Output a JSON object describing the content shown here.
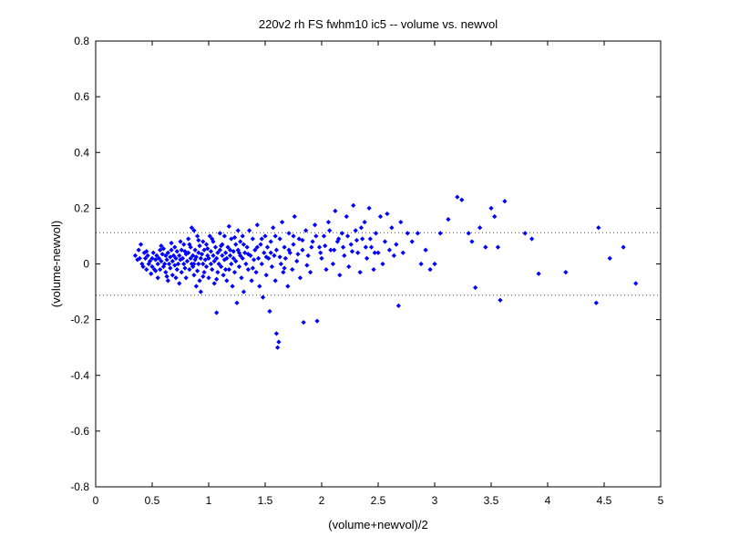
{
  "chart_data": {
    "type": "scatter",
    "title": "220v2 rh FS fwhm10 ic5 -- volume vs. newvol",
    "xlabel": "(volume+newvol)/2",
    "ylabel": "(volume-newvol)",
    "xlim": [
      0,
      5
    ],
    "ylim": [
      -0.8,
      0.8
    ],
    "xticks": [
      "0",
      "0.5",
      "1",
      "1.5",
      "2",
      "2.5",
      "3",
      "3.5",
      "4",
      "4.5",
      "5"
    ],
    "yticks": [
      "-0.8",
      "-0.6",
      "-0.4",
      "-0.2",
      "0",
      "0.2",
      "0.4",
      "0.6",
      "0.8"
    ],
    "grid": false,
    "marker_color": "#0000ff",
    "reference_lines": {
      "values": [
        0.112,
        -0.112
      ],
      "style": "dotted",
      "color": "#ff0000"
    },
    "series": [
      {
        "points": [
          [
            0.35,
            0.03
          ],
          [
            0.37,
            0.015
          ],
          [
            0.38,
            0.05
          ],
          [
            0.39,
            0.02
          ],
          [
            0.4,
            0.07
          ],
          [
            0.41,
            0.0
          ],
          [
            0.42,
            -0.01
          ],
          [
            0.43,
            0.04
          ],
          [
            0.44,
            0.02
          ],
          [
            0.45,
            -0.02
          ],
          [
            0.46,
            0.03
          ],
          [
            0.47,
            0.0
          ],
          [
            0.48,
            0.01
          ],
          [
            0.49,
            -0.035
          ],
          [
            0.5,
            0.02
          ],
          [
            0.5,
            -0.01
          ],
          [
            0.51,
            0.04
          ],
          [
            0.52,
            -0.02
          ],
          [
            0.53,
            0.015
          ],
          [
            0.54,
            0.03
          ],
          [
            0.55,
            0.0
          ],
          [
            0.55,
            -0.05
          ],
          [
            0.56,
            0.02
          ],
          [
            0.57,
            0.05
          ],
          [
            0.57,
            -0.02
          ],
          [
            0.58,
            0.01
          ],
          [
            0.59,
            0.035
          ],
          [
            0.6,
            -0.01
          ],
          [
            0.6,
            0.055
          ],
          [
            0.61,
            0.0
          ],
          [
            0.62,
            0.03
          ],
          [
            0.62,
            -0.03
          ],
          [
            0.63,
            0.015
          ],
          [
            0.64,
            0.04
          ],
          [
            0.64,
            -0.06
          ],
          [
            0.65,
            0.0
          ],
          [
            0.66,
            0.025
          ],
          [
            0.66,
            -0.015
          ],
          [
            0.67,
            0.05
          ],
          [
            0.68,
            0.01
          ],
          [
            0.68,
            -0.04
          ],
          [
            0.69,
            0.03
          ],
          [
            0.7,
            -0.005
          ],
          [
            0.7,
            0.06
          ],
          [
            0.71,
            0.02
          ],
          [
            0.72,
            -0.02
          ],
          [
            0.72,
            0.045
          ],
          [
            0.73,
            0.0
          ],
          [
            0.74,
            0.03
          ],
          [
            0.74,
            -0.07
          ],
          [
            0.75,
            0.015
          ],
          [
            0.76,
            0.05
          ],
          [
            0.76,
            -0.03
          ],
          [
            0.77,
            0.02
          ],
          [
            0.78,
            0.0
          ],
          [
            0.78,
            0.07
          ],
          [
            0.79,
            -0.015
          ],
          [
            0.8,
            0.035
          ],
          [
            0.8,
            -0.05
          ],
          [
            0.81,
            0.01
          ],
          [
            0.82,
            0.09
          ],
          [
            0.82,
            0.04
          ],
          [
            0.83,
            -0.02
          ],
          [
            0.84,
            0.02
          ],
          [
            0.84,
            0.06
          ],
          [
            0.85,
            0.0
          ],
          [
            0.85,
            0.13
          ],
          [
            0.86,
            -0.01
          ],
          [
            0.86,
            0.03
          ],
          [
            0.87,
            0.12
          ],
          [
            0.87,
            -0.04
          ],
          [
            0.88,
            0.05
          ],
          [
            0.88,
            0.015
          ],
          [
            0.89,
            -0.08
          ],
          [
            0.89,
            0.025
          ],
          [
            0.9,
            0.1
          ],
          [
            0.9,
            -0.025
          ],
          [
            0.91,
            0.04
          ],
          [
            0.91,
            0.0
          ],
          [
            0.92,
            0.065
          ],
          [
            0.92,
            -0.06
          ],
          [
            0.93,
            0.02
          ],
          [
            0.93,
            -0.1
          ],
          [
            0.94,
            0.035
          ],
          [
            0.95,
            0.0
          ],
          [
            0.95,
            0.08
          ],
          [
            0.96,
            -0.03
          ],
          [
            0.96,
            0.05
          ],
          [
            0.97,
            0.015
          ],
          [
            0.98,
            -0.01
          ],
          [
            0.98,
            0.07
          ],
          [
            0.99,
            0.03
          ],
          [
            1.0,
            -0.05
          ],
          [
            1.0,
            0.02
          ],
          [
            1.01,
            0.1
          ],
          [
            1.02,
            0.0
          ],
          [
            1.02,
            0.045
          ],
          [
            1.03,
            -0.02
          ],
          [
            1.04,
            0.03
          ],
          [
            1.04,
            0.08
          ],
          [
            1.05,
            -0.07
          ],
          [
            1.05,
            0.01
          ],
          [
            1.06,
            0.06
          ],
          [
            1.07,
            -0.175
          ],
          [
            1.07,
            0.02
          ],
          [
            1.08,
            0.04
          ],
          [
            1.08,
            -0.03
          ],
          [
            1.09,
            0.0
          ],
          [
            1.1,
            0.05
          ],
          [
            1.1,
            0.11
          ],
          [
            1.11,
            -0.01
          ],
          [
            1.12,
            0.03
          ],
          [
            1.12,
            0.07
          ],
          [
            1.13,
            -0.04
          ],
          [
            1.14,
            0.015
          ],
          [
            1.14,
            0.1
          ],
          [
            1.15,
            0.04
          ],
          [
            1.16,
            -0.06
          ],
          [
            1.16,
            0.02
          ],
          [
            1.17,
            0.06
          ],
          [
            1.18,
            -0.02
          ],
          [
            1.18,
            0.135
          ],
          [
            1.19,
            0.03
          ],
          [
            1.2,
            0.0
          ],
          [
            1.2,
            0.09
          ],
          [
            1.21,
            -0.08
          ],
          [
            1.22,
            0.045
          ],
          [
            1.22,
            0.02
          ],
          [
            1.23,
            -0.03
          ],
          [
            1.24,
            0.07
          ],
          [
            1.24,
            0.01
          ],
          [
            1.25,
            -0.14
          ],
          [
            1.26,
            0.05
          ],
          [
            1.26,
            0.12
          ],
          [
            1.27,
            -0.01
          ],
          [
            1.28,
            0.03
          ],
          [
            1.28,
            0.08
          ],
          [
            1.29,
            -0.05
          ],
          [
            1.3,
            0.02
          ],
          [
            1.3,
            0.1
          ],
          [
            1.31,
            -0.1
          ],
          [
            1.32,
            0.04
          ],
          [
            1.33,
            0.0
          ],
          [
            1.34,
            0.06
          ],
          [
            1.35,
            -0.02
          ],
          [
            1.36,
            0.12
          ],
          [
            1.37,
            0.03
          ],
          [
            1.38,
            -0.06
          ],
          [
            1.39,
            0.09
          ],
          [
            1.4,
            0.015
          ],
          [
            1.41,
            0.05
          ],
          [
            1.42,
            -0.03
          ],
          [
            1.43,
            0.14
          ],
          [
            1.44,
            0.02
          ],
          [
            1.45,
            -0.08
          ],
          [
            1.46,
            0.07
          ],
          [
            1.47,
            0.0
          ],
          [
            1.48,
            -0.12
          ],
          [
            1.49,
            0.04
          ],
          [
            1.5,
            0.1
          ],
          [
            1.51,
            -0.04
          ],
          [
            1.52,
            0.06
          ],
          [
            1.53,
            0.02
          ],
          [
            1.54,
            -0.17
          ],
          [
            1.55,
            0.08
          ],
          [
            1.56,
            -0.01
          ],
          [
            1.57,
            0.13
          ],
          [
            1.58,
            0.03
          ],
          [
            1.59,
            -0.06
          ],
          [
            1.6,
            0.05
          ],
          [
            1.6,
            -0.25
          ],
          [
            1.61,
            -0.3
          ],
          [
            1.62,
            -0.28
          ],
          [
            1.63,
            0.09
          ],
          [
            1.64,
            0.0
          ],
          [
            1.65,
            0.15
          ],
          [
            1.66,
            -0.03
          ],
          [
            1.67,
            0.06
          ],
          [
            1.68,
            0.02
          ],
          [
            1.7,
            -0.08
          ],
          [
            1.71,
            0.11
          ],
          [
            1.72,
            0.04
          ],
          [
            1.74,
            -0.02
          ],
          [
            1.75,
            0.07
          ],
          [
            1.76,
            0.17
          ],
          [
            1.78,
            0.01
          ],
          [
            1.8,
            0.09
          ],
          [
            1.81,
            -0.05
          ],
          [
            1.83,
            0.05
          ],
          [
            1.84,
            -0.21
          ],
          [
            1.86,
            0.12
          ],
          [
            1.88,
            0.03
          ],
          [
            1.9,
            -0.03
          ],
          [
            1.92,
            0.08
          ],
          [
            1.94,
            0.14
          ],
          [
            1.96,
            -0.205
          ],
          [
            1.98,
            0.06
          ],
          [
            2.0,
            0.02
          ],
          [
            2.02,
            0.1
          ],
          [
            2.04,
            -0.02
          ],
          [
            2.06,
            0.15
          ],
          [
            2.08,
            0.05
          ],
          [
            2.1,
            0.0
          ],
          [
            2.12,
            0.19
          ],
          [
            2.14,
            0.08
          ],
          [
            2.16,
            -0.04
          ],
          [
            2.18,
            0.11
          ],
          [
            2.2,
            0.03
          ],
          [
            2.22,
            0.17
          ],
          [
            2.24,
            -0.01
          ],
          [
            2.26,
            0.07
          ],
          [
            2.28,
            0.21
          ],
          [
            2.3,
            0.12
          ],
          [
            2.32,
            0.04
          ],
          [
            2.34,
            -0.03
          ],
          [
            2.36,
            0.09
          ],
          [
            2.38,
            0.15
          ],
          [
            2.4,
            0.02
          ],
          [
            2.42,
            0.2
          ],
          [
            2.44,
            0.06
          ],
          [
            2.46,
            -0.02
          ],
          [
            2.48,
            0.11
          ],
          [
            2.5,
            0.04
          ],
          [
            2.52,
            0.17
          ],
          [
            2.54,
            0.0
          ],
          [
            2.56,
            0.08
          ],
          [
            2.58,
            0.18
          ],
          [
            2.6,
            0.05
          ],
          [
            2.62,
            0.13
          ],
          [
            2.64,
            0.03
          ],
          [
            2.66,
            0.07
          ],
          [
            2.68,
            -0.15
          ],
          [
            2.7,
            0.15
          ],
          [
            2.72,
            0.04
          ],
          [
            2.76,
            0.11
          ],
          [
            2.8,
            0.08
          ],
          [
            2.85,
            0.11
          ],
          [
            2.88,
            0.0
          ],
          [
            2.92,
            0.05
          ],
          [
            2.96,
            -0.02
          ],
          [
            3.0,
            0.0
          ],
          [
            3.05,
            0.11
          ],
          [
            3.12,
            0.16
          ],
          [
            3.2,
            0.24
          ],
          [
            3.24,
            0.23
          ],
          [
            3.3,
            0.11
          ],
          [
            3.33,
            0.08
          ],
          [
            3.36,
            -0.085
          ],
          [
            3.4,
            0.13
          ],
          [
            3.45,
            0.06
          ],
          [
            3.5,
            0.2
          ],
          [
            3.53,
            0.17
          ],
          [
            3.56,
            0.06
          ],
          [
            3.58,
            -0.13
          ],
          [
            3.62,
            0.225
          ],
          [
            3.8,
            0.11
          ],
          [
            3.86,
            0.09
          ],
          [
            3.92,
            -0.035
          ],
          [
            4.16,
            -0.03
          ],
          [
            4.43,
            -0.14
          ],
          [
            4.45,
            0.13
          ],
          [
            4.55,
            0.02
          ],
          [
            4.67,
            0.06
          ],
          [
            4.78,
            -0.07
          ],
          [
            0.45,
            0.045
          ],
          [
            0.53,
            -0.025
          ],
          [
            0.58,
            0.065
          ],
          [
            0.63,
            -0.045
          ],
          [
            0.67,
            0.075
          ],
          [
            0.71,
            -0.05
          ],
          [
            0.75,
            0.08
          ],
          [
            0.79,
            0.045
          ],
          [
            0.83,
            0.07
          ],
          [
            0.87,
            0.0
          ],
          [
            0.91,
            0.085
          ],
          [
            0.95,
            -0.045
          ],
          [
            0.99,
            0.055
          ],
          [
            1.03,
            0.09
          ],
          [
            1.07,
            -0.055
          ],
          [
            1.11,
            0.065
          ],
          [
            1.15,
            -0.02
          ],
          [
            1.19,
            0.05
          ],
          [
            1.23,
            0.095
          ],
          [
            1.27,
            0.04
          ],
          [
            1.31,
            0.07
          ],
          [
            1.35,
            0.035
          ],
          [
            1.39,
            -0.015
          ],
          [
            1.43,
            0.06
          ],
          [
            1.47,
            0.09
          ],
          [
            1.51,
            0.025
          ],
          [
            1.55,
            0.04
          ],
          [
            1.59,
            0.1
          ],
          [
            1.63,
            0.025
          ],
          [
            1.67,
            -0.015
          ],
          [
            1.71,
            0.05
          ],
          [
            1.75,
            0.1
          ],
          [
            1.79,
            0.035
          ],
          [
            1.83,
            0.085
          ],
          [
            1.87,
            -0.005
          ],
          [
            1.91,
            0.06
          ],
          [
            1.95,
            0.1
          ],
          [
            1.99,
            0.04
          ],
          [
            2.03,
            0.065
          ],
          [
            2.07,
            0.12
          ],
          [
            2.11,
            0.05
          ],
          [
            2.15,
            0.09
          ],
          [
            2.19,
            0.06
          ],
          [
            2.23,
            0.1
          ],
          [
            2.27,
            0.045
          ],
          [
            2.31,
            0.085
          ],
          [
            2.35,
            0.13
          ],
          [
            2.39,
            0.06
          ],
          [
            2.43,
            0.09
          ],
          [
            2.47,
            0.04
          ]
        ]
      }
    ]
  }
}
